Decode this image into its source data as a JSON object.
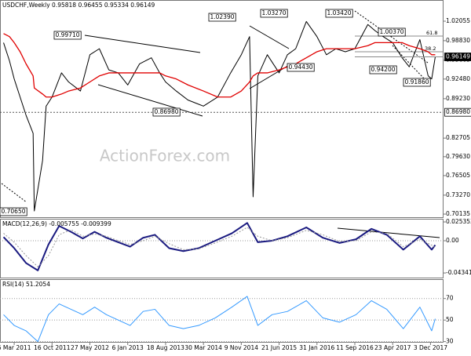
{
  "chart_data": [
    {
      "type": "line",
      "title": "USDCHF,Weekly 0.95818 0.96455 0.95334 0.96149",
      "watermark": "ActionForex.com",
      "x": [
        "2011-01-02",
        "2011-02-06",
        "2011-03-06",
        "2011-04-10",
        "2011-05-15",
        "2011-06-26",
        "2011-07-03",
        "2011-08-21",
        "2011-09-11",
        "2011-10-16",
        "2011-12-11",
        "2012-01-22",
        "2012-04-01",
        "2012-05-27",
        "2012-07-22",
        "2012-09-16",
        "2012-11-11",
        "2013-01-06",
        "2013-03-17",
        "2013-05-26",
        "2013-07-14",
        "2013-08-18",
        "2013-10-20",
        "2013-12-29",
        "2014-03-30",
        "2014-06-22",
        "2014-09-07",
        "2014-11-09",
        "2014-12-28",
        "2015-01-18",
        "2015-02-15",
        "2015-04-12",
        "2015-06-21",
        "2015-08-09",
        "2015-09-27",
        "2015-11-29",
        "2016-01-31",
        "2016-03-27",
        "2016-05-22",
        "2016-07-17",
        "2016-09-11",
        "2016-11-27",
        "2017-01-08",
        "2017-02-26",
        "2017-04-23",
        "2017-06-18",
        "2017-07-30",
        "2017-10-01",
        "2017-11-19",
        "2017-12-10",
        "2017-12-31"
      ],
      "series": [
        {
          "color": "#000000",
          "width": 1,
          "values": [
            0.985,
            0.955,
            0.925,
            0.895,
            0.865,
            0.835,
            0.7065,
            0.79,
            0.88,
            0.895,
            0.935,
            0.92,
            0.905,
            0.965,
            0.975,
            0.94,
            0.935,
            0.915,
            0.95,
            0.96,
            0.935,
            0.92,
            0.905,
            0.89,
            0.88,
            0.895,
            0.935,
            0.965,
            0.995,
            0.73,
            0.93,
            0.965,
            0.935,
            0.965,
            0.975,
            1.02,
            0.995,
            0.965,
            0.975,
            0.97,
            0.975,
            1.015,
            1.005,
            0.995,
            0.985,
            0.96,
            0.945,
            0.99,
            0.93,
            0.925,
            0.9615
          ]
        },
        {
          "color": "#e00000",
          "width": 1.3,
          "values": [
            1.0,
            0.995,
            0.985,
            0.97,
            0.95,
            0.93,
            0.91,
            0.9,
            0.895,
            0.895,
            0.9,
            0.905,
            0.91,
            0.92,
            0.93,
            0.935,
            0.935,
            0.935,
            0.935,
            0.935,
            0.935,
            0.93,
            0.925,
            0.915,
            0.905,
            0.895,
            0.895,
            0.905,
            0.92,
            0.93,
            0.935,
            0.935,
            0.94,
            0.945,
            0.95,
            0.96,
            0.97,
            0.975,
            0.975,
            0.975,
            0.975,
            0.98,
            0.985,
            0.985,
            0.985,
            0.985,
            0.98,
            0.975,
            0.97,
            0.965,
            0.965
          ]
        }
      ],
      "xlim": [
        "2010-12-12",
        "2018-02-18"
      ],
      "ylim": [
        0.6949,
        1.0556
      ],
      "yticks": [
        1.02055,
        {
          "value": 0.9883,
          "label": "0.98830"
        },
        0.95605,
        {
          "value": 0.9248,
          "label": "0.92480"
        },
        {
          "value": 0.8923,
          "label": "0.89230"
        },
        0.82705,
        {
          "value": 0.7963,
          "label": "0.79630"
        },
        0.76505,
        {
          "value": 0.7327,
          "label": "0.73270"
        },
        0.70135
      ],
      "price_tags": [
        {
          "value": 0.96149,
          "label": "0.96149",
          "dashed": false
        },
        {
          "value": 0.8698,
          "label": "0.86980",
          "dashed": true
        }
      ],
      "annotations": [
        "0.70650",
        "0.99710",
        "1.02390",
        "1.03270",
        "1.03420",
        "1.00370",
        "0.94430",
        "0.94200",
        "0.91860",
        "0.86980",
        "61.8",
        "38.2"
      ]
    },
    {
      "type": "line",
      "title": "MACD(12,26,9) -0.005755 -0.009399",
      "x": [
        "2011-01-02",
        "2011-03-06",
        "2011-05-15",
        "2011-07-24",
        "2011-09-25",
        "2011-11-27",
        "2012-02-05",
        "2012-04-15",
        "2012-06-24",
        "2012-09-02",
        "2012-11-11",
        "2013-01-20",
        "2013-04-07",
        "2013-06-16",
        "2013-09-08",
        "2013-12-01",
        "2014-03-02",
        "2014-06-08",
        "2014-09-14",
        "2014-12-14",
        "2015-02-15",
        "2015-05-10",
        "2015-08-09",
        "2015-11-29",
        "2016-03-06",
        "2016-06-12",
        "2016-09-18",
        "2016-12-18",
        "2017-03-19",
        "2017-06-25",
        "2017-10-01",
        "2017-12-10",
        "2017-12-31"
      ],
      "series": [
        {
          "color": "#1a1a80",
          "width": 2,
          "dashed": false,
          "values": [
            0.005,
            -0.01,
            -0.03,
            -0.04,
            -0.005,
            0.02,
            0.012,
            0.003,
            0.012,
            0.004,
            -0.002,
            -0.008,
            0.004,
            0.008,
            -0.01,
            -0.014,
            -0.01,
            0.0,
            0.01,
            0.024,
            -0.002,
            0.0,
            0.006,
            0.018,
            0.004,
            -0.003,
            0.002,
            0.016,
            0.008,
            -0.012,
            0.006,
            -0.012,
            -0.005755
          ]
        },
        {
          "color": "#999999",
          "width": 1,
          "dashed": true,
          "values": [
            0.01,
            -0.002,
            -0.02,
            -0.035,
            -0.02,
            0.008,
            0.015,
            0.006,
            0.009,
            0.006,
            0.0,
            -0.005,
            0.0,
            0.006,
            -0.004,
            -0.012,
            -0.011,
            -0.003,
            0.006,
            0.018,
            0.006,
            0.0,
            0.004,
            0.014,
            0.008,
            -0.001,
            0.0,
            0.012,
            0.01,
            -0.008,
            0.002,
            -0.006,
            -0.009399
          ]
        }
      ],
      "xlim": [
        "2010-12-12",
        "2018-02-18"
      ],
      "ylim": [
        -0.0507,
        0.0296
      ],
      "yticks": [
        0.025353,
        {
          "value": 0,
          "label": "0.00"
        },
        -0.043419
      ],
      "zero_line": true
    },
    {
      "type": "line",
      "title": "RSI(14) 51.2054",
      "x": [
        "2011-01-02",
        "2011-03-06",
        "2011-05-15",
        "2011-07-24",
        "2011-09-25",
        "2011-11-27",
        "2012-02-05",
        "2012-04-15",
        "2012-06-24",
        "2012-09-02",
        "2012-11-11",
        "2013-01-20",
        "2013-04-07",
        "2013-06-16",
        "2013-09-08",
        "2013-12-01",
        "2014-03-02",
        "2014-06-08",
        "2014-09-14",
        "2014-12-14",
        "2015-02-15",
        "2015-05-10",
        "2015-08-09",
        "2015-11-29",
        "2016-03-06",
        "2016-06-12",
        "2016-09-18",
        "2016-12-18",
        "2017-03-19",
        "2017-06-25",
        "2017-10-01",
        "2017-12-10",
        "2017-12-31"
      ],
      "series": [
        {
          "color": "#3399ff",
          "width": 1,
          "dashed": false,
          "values": [
            55,
            45,
            40,
            30,
            55,
            65,
            60,
            55,
            62,
            55,
            50,
            45,
            58,
            60,
            45,
            42,
            45,
            52,
            62,
            72,
            45,
            55,
            58,
            68,
            52,
            48,
            55,
            68,
            60,
            42,
            62,
            40,
            51.2054
          ]
        }
      ],
      "xlim": [
        "2010-12-12",
        "2018-02-18"
      ],
      "ylim": [
        29,
        88
      ],
      "yticks": [
        70,
        50,
        30
      ],
      "grid": true,
      "xticks": [
        {
          "value": "2011-03-06",
          "label": "6 Mar 2011"
        },
        {
          "value": "2011-10-16",
          "label": "16 Oct 2011"
        },
        {
          "value": "2012-05-27",
          "label": "27 May 2012"
        },
        {
          "value": "2013-01-06",
          "label": "6 Jan 2013"
        },
        {
          "value": "2013-08-18",
          "label": "18 Aug 2013"
        },
        {
          "value": "2014-03-30",
          "label": "30 Mar 2014"
        },
        {
          "value": "2014-11-09",
          "label": "9 Nov 2014"
        },
        {
          "value": "2015-06-21",
          "label": "21 Jun 2015"
        },
        {
          "value": "2016-01-31",
          "label": "31 Jan 2016"
        },
        {
          "value": "2016-09-11",
          "label": "11 Sep 2016"
        },
        {
          "value": "2017-04-23",
          "label": "23 Apr 2017"
        },
        {
          "value": "2017-12-03",
          "label": "3 Dec 2017"
        }
      ]
    }
  ]
}
